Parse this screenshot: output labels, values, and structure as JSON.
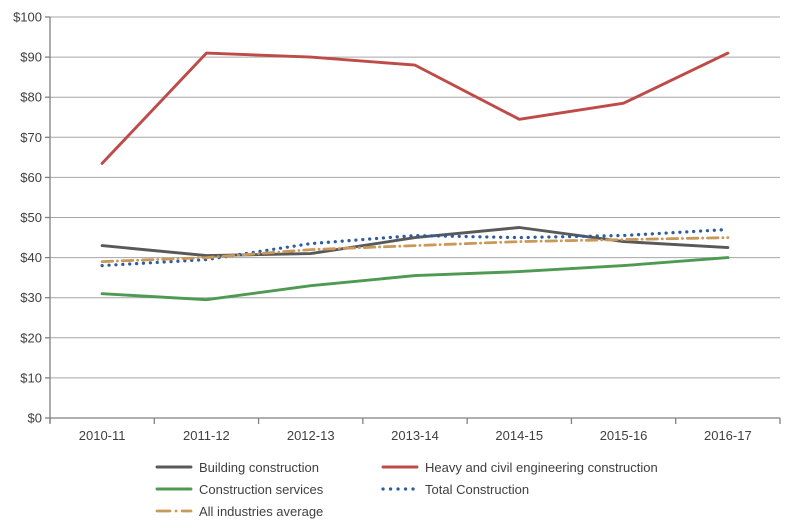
{
  "chart_data": {
    "type": "line",
    "title": "",
    "x_categories": [
      "2010-11",
      "2011-12",
      "2012-13",
      "2013-14",
      "2014-15",
      "2015-16",
      "2016-17"
    ],
    "series": [
      {
        "name": "Building construction",
        "color": "#595959",
        "style": "solid",
        "values": [
          43,
          40.5,
          41,
          45,
          47.5,
          44,
          42.5
        ]
      },
      {
        "name": "Heavy and civil engineering construction",
        "color": "#BE4B48",
        "style": "solid",
        "values": [
          63.5,
          91,
          90,
          88,
          74.5,
          78.5,
          91
        ]
      },
      {
        "name": "Construction services",
        "color": "#4F9A53",
        "style": "solid",
        "values": [
          31,
          29.5,
          33,
          35.5,
          36.5,
          38,
          40
        ]
      },
      {
        "name": "Total Construction",
        "color": "#2E5C9E",
        "style": "dotted",
        "values": [
          38,
          39.5,
          43.5,
          45.5,
          45,
          45.5,
          47
        ]
      },
      {
        "name": "All industries average",
        "color": "#C9995A",
        "style": "dashdot",
        "values": [
          39,
          40,
          42,
          43,
          44,
          44.5,
          45
        ]
      }
    ],
    "ylim": [
      0,
      100
    ],
    "ytick_step": 10,
    "ytick_prefix": "$",
    "y_tick_labels": [
      "$0",
      "$10",
      "$20",
      "$30",
      "$40",
      "$50",
      "$60",
      "$70",
      "$80",
      "$90",
      "$100"
    ],
    "grid": "horizontal",
    "legend_position": "bottom",
    "legend_rows": [
      [
        "Building construction",
        "Heavy and civil engineering construction"
      ],
      [
        "Construction services",
        "Total Construction"
      ],
      [
        "All industries average"
      ]
    ]
  },
  "colors": {
    "background": "#FFFFFF",
    "axis_line": "#808080",
    "gridline": "#A6A6A6",
    "tick_text": "#3F3F3F"
  }
}
